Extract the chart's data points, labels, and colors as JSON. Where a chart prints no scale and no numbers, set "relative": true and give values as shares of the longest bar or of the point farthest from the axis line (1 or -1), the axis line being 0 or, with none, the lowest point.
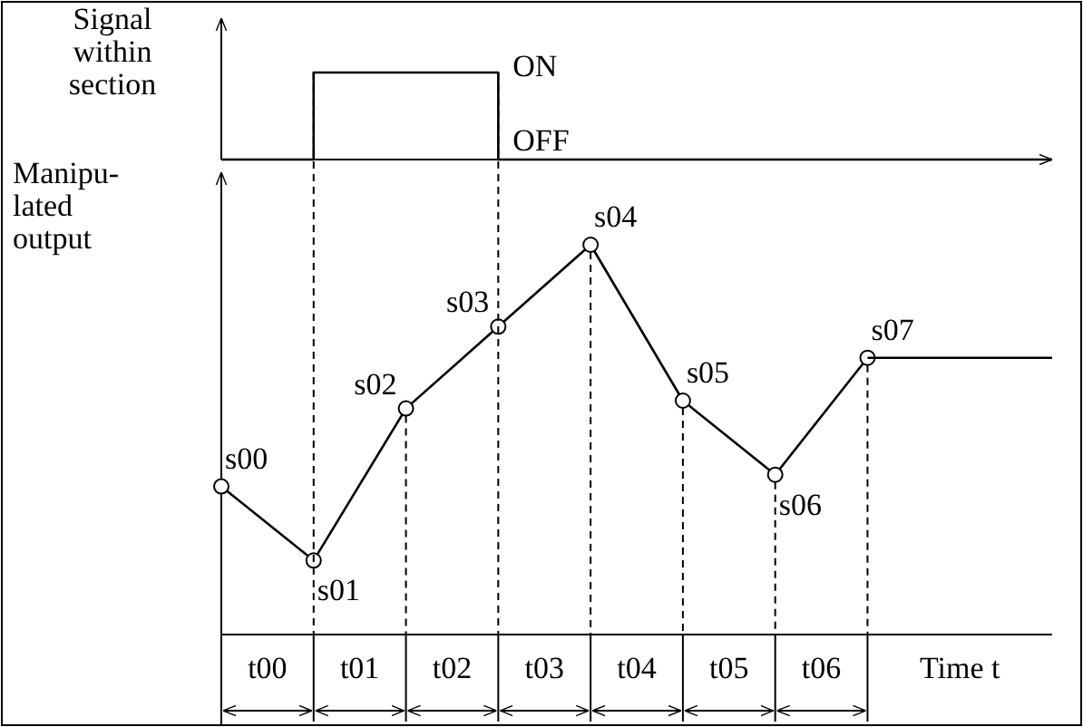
{
  "chart_data": [
    {
      "type": "step",
      "ylabel": "Signal within section",
      "relative": true,
      "categories": [
        null,
        null,
        null,
        null,
        null,
        null,
        null,
        null,
        null,
        null
      ],
      "series": [
        {
          "color": "#000000",
          "values": [
            0,
            1,
            1,
            0,
            0,
            0,
            0,
            0,
            0,
            0
          ]
        }
      ],
      "annotations": [
        "ON",
        "OFF"
      ]
    },
    {
      "type": "line",
      "ylabel": "Manipu-lated output",
      "xlabel": "Time t",
      "relative": true,
      "categories": [
        null,
        null,
        null,
        null,
        null,
        null,
        null,
        null,
        null,
        null
      ],
      "series": [
        {
          "color": "#000000",
          "marker": "circle",
          "line_style": "solid",
          "values": [
            0.38,
            0.19,
            0.58,
            0.79,
            1,
            0.6,
            0.41,
            0.71,
            null,
            null
          ]
        },
        {
          "color": "#000000",
          "marker": "none",
          "line_style": "solid",
          "values": [
            null,
            null,
            null,
            null,
            null,
            null,
            null,
            0.71,
            0.71,
            0.71
          ]
        }
      ],
      "annotations": [
        "s00",
        "s01",
        "s02",
        "s03",
        "s04",
        "s05",
        "s06",
        "s07",
        "t00",
        "t01",
        "t02",
        "t03",
        "t04",
        "t05",
        "t06"
      ]
    }
  ]
}
